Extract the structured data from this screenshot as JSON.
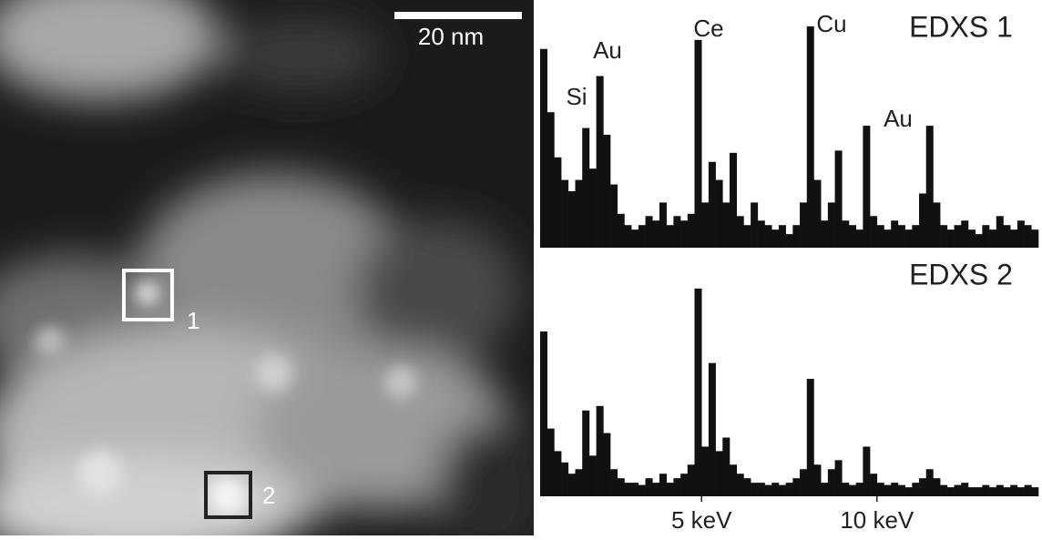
{
  "image": {
    "scale_bar": "20 nm",
    "regions": [
      "1",
      "2"
    ]
  },
  "chart_data": [
    {
      "type": "bar",
      "title": "EDXS 1",
      "color": "#111111",
      "annotations": [
        "Si",
        "Au",
        "Ce",
        "Cu",
        "Au"
      ],
      "x": [
        0.5,
        0.7,
        0.9,
        1.1,
        1.3,
        1.5,
        1.7,
        1.9,
        2.1,
        2.3,
        2.5,
        2.7,
        2.9,
        3.1,
        3.3,
        3.5,
        3.7,
        3.9,
        4.1,
        4.3,
        4.5,
        4.7,
        4.9,
        5.1,
        5.3,
        5.5,
        5.7,
        5.9,
        6.1,
        6.3,
        6.5,
        6.7,
        6.9,
        7.1,
        7.3,
        7.5,
        7.7,
        7.9,
        8.1,
        8.3,
        8.5,
        8.7,
        8.9,
        9.1,
        9.3,
        9.5,
        9.7,
        9.9,
        10.1,
        10.3,
        10.5,
        10.7,
        10.9,
        11.1,
        11.3,
        11.5,
        11.7,
        11.9,
        12.1,
        12.3,
        12.5,
        12.7,
        12.9,
        13.1,
        13.3,
        13.5,
        13.7,
        13.9,
        14.1,
        14.3,
        14.5
      ],
      "values": [
        88,
        60,
        40,
        30,
        25,
        30,
        53,
        35,
        76,
        50,
        28,
        15,
        10,
        8,
        10,
        14,
        12,
        20,
        10,
        14,
        12,
        15,
        92,
        20,
        38,
        30,
        20,
        42,
        14,
        10,
        20,
        12,
        10,
        8,
        10,
        6,
        10,
        20,
        98,
        30,
        12,
        20,
        43,
        12,
        10,
        8,
        54,
        14,
        10,
        8,
        12,
        10,
        8,
        10,
        24,
        54,
        20,
        10,
        8,
        10,
        12,
        8,
        6,
        10,
        8,
        14,
        10,
        8,
        12,
        10,
        8
      ],
      "xlim": [
        0.4,
        14.6
      ],
      "ylim": [
        0,
        100
      ]
    },
    {
      "type": "bar",
      "title": "EDXS 2",
      "color": "#111111",
      "x": [
        0.5,
        0.7,
        0.9,
        1.1,
        1.3,
        1.5,
        1.7,
        1.9,
        2.1,
        2.3,
        2.5,
        2.7,
        2.9,
        3.1,
        3.3,
        3.5,
        3.7,
        3.9,
        4.1,
        4.3,
        4.5,
        4.7,
        4.9,
        5.1,
        5.3,
        5.5,
        5.7,
        5.9,
        6.1,
        6.3,
        6.5,
        6.7,
        6.9,
        7.1,
        7.3,
        7.5,
        7.7,
        7.9,
        8.1,
        8.3,
        8.5,
        8.7,
        8.9,
        9.1,
        9.3,
        9.5,
        9.7,
        9.9,
        10.1,
        10.3,
        10.5,
        10.7,
        10.9,
        11.1,
        11.3,
        11.5,
        11.7,
        11.9,
        12.1,
        12.3,
        12.5,
        12.7,
        12.9,
        13.1,
        13.3,
        13.5,
        13.7,
        13.9,
        14.1,
        14.3,
        14.5
      ],
      "values": [
        73,
        30,
        20,
        15,
        10,
        12,
        38,
        18,
        40,
        28,
        12,
        8,
        6,
        6,
        5,
        8,
        6,
        10,
        6,
        8,
        10,
        14,
        92,
        22,
        59,
        20,
        26,
        14,
        10,
        8,
        6,
        6,
        5,
        6,
        5,
        6,
        8,
        12,
        52,
        14,
        6,
        12,
        16,
        6,
        5,
        6,
        22,
        10,
        6,
        5,
        6,
        5,
        4,
        6,
        8,
        12,
        8,
        5,
        4,
        5,
        6,
        4,
        4,
        5,
        4,
        5,
        4,
        5,
        4,
        5,
        4
      ],
      "xlim": [
        0.4,
        14.6
      ],
      "ylim": [
        0,
        100
      ],
      "xticks": [
        {
          "value": 5,
          "label": "5 keV"
        },
        {
          "value": 10,
          "label": "10 keV"
        }
      ]
    }
  ]
}
